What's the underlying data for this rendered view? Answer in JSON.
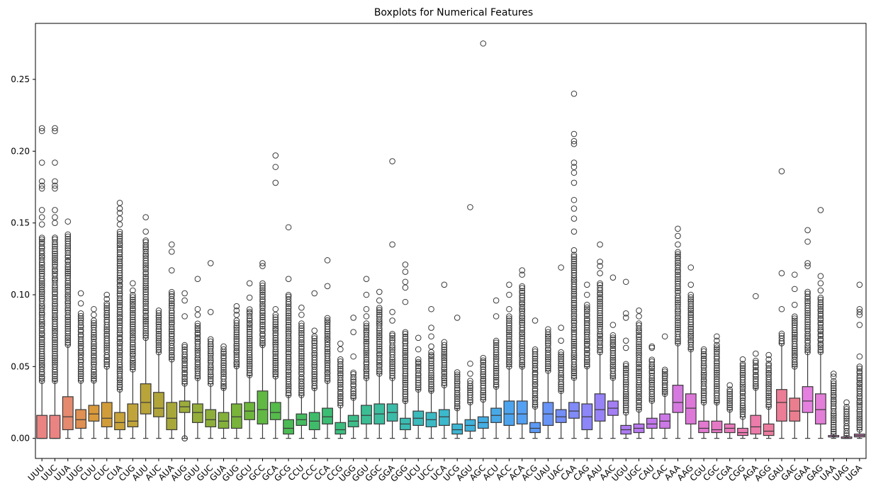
{
  "chart_data": {
    "type": "box",
    "title": "Boxplots for Numerical Features",
    "xlabel": "",
    "ylabel": "",
    "ylim": [
      -0.014,
      0.289
    ],
    "yticks": [
      0.0,
      0.05,
      0.1,
      0.15,
      0.2,
      0.25
    ],
    "ytick_labels": [
      "0.00",
      "0.05",
      "0.10",
      "0.15",
      "0.20",
      "0.25"
    ],
    "categories": [
      "UUU",
      "UUC",
      "UUA",
      "UUG",
      "CUU",
      "CUC",
      "CUA",
      "CUG",
      "AUU",
      "AUC",
      "AUA",
      "AUG",
      "GUU",
      "GUC",
      "GUA",
      "GUG",
      "GCU",
      "GCC",
      "GCA",
      "GCG",
      "CCU",
      "CCC",
      "CCA",
      "CCG",
      "UGG",
      "GGU",
      "GGC",
      "GGA",
      "GGG",
      "UCU",
      "UCC",
      "UCA",
      "UCG",
      "AGU",
      "AGC",
      "ACU",
      "ACC",
      "ACA",
      "ACG",
      "UAU",
      "UAC",
      "CAA",
      "CAG",
      "AAU",
      "AAC",
      "UGU",
      "UGC",
      "CAU",
      "CAC",
      "AAA",
      "AAG",
      "CGU",
      "CGC",
      "CGA",
      "CGG",
      "AGA",
      "AGG",
      "GAU",
      "GAC",
      "GAA",
      "GAG",
      "UAA",
      "UAG",
      "UGA"
    ],
    "colors": [
      "#ea8482",
      "#ea8482",
      "#e58a6e",
      "#e09052",
      "#d99a3c",
      "#d19d3a",
      "#c8a23a",
      "#c0a43a",
      "#b8a439",
      "#b1a53a",
      "#a8a83a",
      "#9ead3a",
      "#95ae3a",
      "#8daf3a",
      "#83b13a",
      "#79b33a",
      "#6db63c",
      "#61b943",
      "#55bb4b",
      "#4bbb54",
      "#45bc60",
      "#3fbc6a",
      "#3cbd74",
      "#3cbd7e",
      "#3cbd8a",
      "#3cbd94",
      "#3bbd9e",
      "#3bbca8",
      "#3bbcb2",
      "#3bbbbc",
      "#3bbac5",
      "#3cb9cc",
      "#3eb6d4",
      "#40b2dc",
      "#44aee3",
      "#48a9e9",
      "#4da4ee",
      "#54a0f2",
      "#5c9af5",
      "#6894f7",
      "#748ef8",
      "#808af8",
      "#8c86f8",
      "#9882f7",
      "#a47ef5",
      "#ae7bf2",
      "#b879ef",
      "#c278ec",
      "#cc78e6",
      "#d578df",
      "#dd78d8",
      "#e278cf",
      "#e679c6",
      "#e97abd",
      "#eb7bb3",
      "#ec7caa",
      "#ec7ca0",
      "#ec7d96",
      "#eb7e8e",
      "#e57fe0",
      "#e37fd8",
      "#e080d0",
      "#de80c8",
      "#db80c0"
    ],
    "stats": [
      {
        "q1": 0.0,
        "median": 0.0,
        "q3": 0.016,
        "whislo": 0.0,
        "whishi": 0.04,
        "fliers_low": 0.04,
        "fliers_high": 0.14,
        "extra": [
          0.216,
          0.214,
          0.192,
          0.179,
          0.176,
          0.174,
          0.159,
          0.154,
          0.149
        ]
      },
      {
        "q1": 0.0,
        "median": 0.0,
        "q3": 0.016,
        "whislo": 0.0,
        "whishi": 0.04,
        "fliers_low": 0.04,
        "fliers_high": 0.14,
        "extra": [
          0.216,
          0.214,
          0.192,
          0.179,
          0.176,
          0.174,
          0.159,
          0.154,
          0.15
        ]
      },
      {
        "q1": 0.006,
        "median": 0.015,
        "q3": 0.029,
        "whislo": 0.0,
        "whishi": 0.065,
        "fliers_low": 0.065,
        "fliers_high": 0.142,
        "extra": [
          0.151
        ]
      },
      {
        "q1": 0.007,
        "median": 0.013,
        "q3": 0.02,
        "whislo": 0.0,
        "whishi": 0.04,
        "fliers_low": 0.04,
        "fliers_high": 0.087,
        "extra": [
          0.094,
          0.101
        ]
      },
      {
        "q1": 0.012,
        "median": 0.017,
        "q3": 0.023,
        "whislo": 0.0,
        "whishi": 0.04,
        "fliers_low": 0.04,
        "fliers_high": 0.082,
        "extra": [
          0.086,
          0.09
        ]
      },
      {
        "q1": 0.008,
        "median": 0.014,
        "q3": 0.025,
        "whislo": 0.0,
        "whishi": 0.05,
        "fliers_low": 0.05,
        "fliers_high": 0.094,
        "extra": [
          0.097,
          0.1
        ]
      },
      {
        "q1": 0.006,
        "median": 0.011,
        "q3": 0.018,
        "whislo": 0.0,
        "whishi": 0.034,
        "fliers_low": 0.034,
        "fliers_high": 0.144,
        "extra": [
          0.149,
          0.153,
          0.157,
          0.16,
          0.164
        ]
      },
      {
        "q1": 0.008,
        "median": 0.012,
        "q3": 0.024,
        "whislo": 0.0,
        "whishi": 0.048,
        "fliers_low": 0.048,
        "fliers_high": 0.1,
        "extra": [
          0.103,
          0.108
        ]
      },
      {
        "q1": 0.017,
        "median": 0.025,
        "q3": 0.038,
        "whislo": 0.0,
        "whishi": 0.07,
        "fliers_low": 0.07,
        "fliers_high": 0.138,
        "extra": [
          0.144,
          0.154
        ]
      },
      {
        "q1": 0.015,
        "median": 0.021,
        "q3": 0.032,
        "whislo": 0.0,
        "whishi": 0.06,
        "fliers_low": 0.06,
        "fliers_high": 0.089,
        "extra": []
      },
      {
        "q1": 0.006,
        "median": 0.014,
        "q3": 0.025,
        "whislo": 0.0,
        "whishi": 0.055,
        "fliers_low": 0.055,
        "fliers_high": 0.102,
        "extra": [
          0.117,
          0.13,
          0.135
        ]
      },
      {
        "q1": 0.018,
        "median": 0.022,
        "q3": 0.026,
        "whislo": 0.0,
        "whishi": 0.038,
        "fliers_low": 0.038,
        "fliers_high": 0.065,
        "extra": [
          0.085,
          0.096,
          0.101,
          0.0,
          0.0
        ]
      },
      {
        "q1": 0.011,
        "median": 0.018,
        "q3": 0.024,
        "whislo": 0.0,
        "whishi": 0.042,
        "fliers_low": 0.042,
        "fliers_high": 0.08,
        "extra": [
          0.086,
          0.09,
          0.111
        ]
      },
      {
        "q1": 0.008,
        "median": 0.013,
        "q3": 0.02,
        "whislo": 0.0,
        "whishi": 0.038,
        "fliers_low": 0.038,
        "fliers_high": 0.069,
        "extra": [
          0.088,
          0.122
        ]
      },
      {
        "q1": 0.007,
        "median": 0.012,
        "q3": 0.018,
        "whislo": 0.0,
        "whishi": 0.035,
        "fliers_low": 0.035,
        "fliers_high": 0.062,
        "extra": [
          0.064
        ]
      },
      {
        "q1": 0.007,
        "median": 0.015,
        "q3": 0.024,
        "whislo": 0.0,
        "whishi": 0.05,
        "fliers_low": 0.05,
        "fliers_high": 0.082,
        "extra": [
          0.086,
          0.089,
          0.092
        ]
      },
      {
        "q1": 0.013,
        "median": 0.019,
        "q3": 0.025,
        "whislo": 0.0,
        "whishi": 0.044,
        "fliers_low": 0.044,
        "fliers_high": 0.09,
        "extra": [
          0.098,
          0.108
        ]
      },
      {
        "q1": 0.01,
        "median": 0.02,
        "q3": 0.033,
        "whislo": 0.0,
        "whishi": 0.065,
        "fliers_low": 0.065,
        "fliers_high": 0.108,
        "extra": [
          0.12,
          0.122
        ]
      },
      {
        "q1": 0.013,
        "median": 0.018,
        "q3": 0.025,
        "whislo": 0.0,
        "whishi": 0.043,
        "fliers_low": 0.043,
        "fliers_high": 0.086,
        "extra": [
          0.09,
          0.178,
          0.189,
          0.197
        ]
      },
      {
        "q1": 0.003,
        "median": 0.007,
        "q3": 0.013,
        "whislo": 0.0,
        "whishi": 0.03,
        "fliers_low": 0.03,
        "fliers_high": 0.1,
        "extra": [
          0.111,
          0.147
        ]
      },
      {
        "q1": 0.009,
        "median": 0.013,
        "q3": 0.017,
        "whislo": 0.0,
        "whishi": 0.03,
        "fliers_low": 0.03,
        "fliers_high": 0.08,
        "extra": [
          0.086,
          0.091
        ]
      },
      {
        "q1": 0.006,
        "median": 0.012,
        "q3": 0.018,
        "whislo": 0.0,
        "whishi": 0.035,
        "fliers_low": 0.035,
        "fliers_high": 0.071,
        "extra": [
          0.075,
          0.101
        ]
      },
      {
        "q1": 0.01,
        "median": 0.015,
        "q3": 0.021,
        "whislo": 0.0,
        "whishi": 0.04,
        "fliers_low": 0.04,
        "fliers_high": 0.084,
        "extra": [
          0.106,
          0.124
        ]
      },
      {
        "q1": 0.003,
        "median": 0.006,
        "q3": 0.011,
        "whislo": 0.0,
        "whishi": 0.023,
        "fliers_low": 0.023,
        "fliers_high": 0.055,
        "extra": [
          0.062,
          0.066
        ]
      },
      {
        "q1": 0.008,
        "median": 0.012,
        "q3": 0.016,
        "whislo": 0.0,
        "whishi": 0.028,
        "fliers_low": 0.028,
        "fliers_high": 0.046,
        "extra": [
          0.057,
          0.074,
          0.084
        ]
      },
      {
        "q1": 0.01,
        "median": 0.016,
        "q3": 0.023,
        "whislo": 0.0,
        "whishi": 0.042,
        "fliers_low": 0.042,
        "fliers_high": 0.08,
        "extra": [
          0.085,
          0.09,
          0.1,
          0.111
        ]
      },
      {
        "q1": 0.01,
        "median": 0.017,
        "q3": 0.024,
        "whislo": 0.0,
        "whishi": 0.045,
        "fliers_low": 0.045,
        "fliers_high": 0.091,
        "extra": [
          0.096,
          0.102
        ]
      },
      {
        "q1": 0.012,
        "median": 0.018,
        "q3": 0.024,
        "whislo": 0.0,
        "whishi": 0.042,
        "fliers_low": 0.042,
        "fliers_high": 0.073,
        "extra": [
          0.082,
          0.088,
          0.135,
          0.193
        ]
      },
      {
        "q1": 0.006,
        "median": 0.01,
        "q3": 0.014,
        "whislo": 0.0,
        "whishi": 0.026,
        "fliers_low": 0.026,
        "fliers_high": 0.074,
        "extra": [
          0.095,
          0.105,
          0.109,
          0.116,
          0.121
        ]
      },
      {
        "q1": 0.009,
        "median": 0.014,
        "q3": 0.019,
        "whislo": 0.0,
        "whishi": 0.034,
        "fliers_low": 0.034,
        "fliers_high": 0.055,
        "extra": [
          0.062,
          0.07
        ]
      },
      {
        "q1": 0.008,
        "median": 0.013,
        "q3": 0.018,
        "whislo": 0.0,
        "whishi": 0.033,
        "fliers_low": 0.033,
        "fliers_high": 0.06,
        "extra": [
          0.064,
          0.071,
          0.077,
          0.09
        ]
      },
      {
        "q1": 0.009,
        "median": 0.015,
        "q3": 0.02,
        "whislo": 0.0,
        "whishi": 0.037,
        "fliers_low": 0.037,
        "fliers_high": 0.065,
        "extra": [
          0.067,
          0.107
        ]
      },
      {
        "q1": 0.003,
        "median": 0.006,
        "q3": 0.01,
        "whislo": 0.0,
        "whishi": 0.021,
        "fliers_low": 0.021,
        "fliers_high": 0.046,
        "extra": [
          0.084
        ]
      },
      {
        "q1": 0.005,
        "median": 0.009,
        "q3": 0.013,
        "whislo": 0.0,
        "whishi": 0.025,
        "fliers_low": 0.025,
        "fliers_high": 0.04,
        "extra": [
          0.045,
          0.052,
          0.161
        ]
      },
      {
        "q1": 0.007,
        "median": 0.011,
        "q3": 0.015,
        "whislo": 0.0,
        "whishi": 0.027,
        "fliers_low": 0.027,
        "fliers_high": 0.056,
        "extra": [
          0.275
        ]
      },
      {
        "q1": 0.011,
        "median": 0.016,
        "q3": 0.021,
        "whislo": 0.0,
        "whishi": 0.036,
        "fliers_low": 0.036,
        "fliers_high": 0.068,
        "extra": [
          0.085,
          0.096
        ]
      },
      {
        "q1": 0.009,
        "median": 0.017,
        "q3": 0.026,
        "whislo": 0.0,
        "whishi": 0.05,
        "fliers_low": 0.05,
        "fliers_high": 0.085,
        "extra": [
          0.09,
          0.1,
          0.107
        ]
      },
      {
        "q1": 0.01,
        "median": 0.017,
        "q3": 0.026,
        "whislo": 0.0,
        "whishi": 0.05,
        "fliers_low": 0.05,
        "fliers_high": 0.106,
        "extra": [
          0.114,
          0.117
        ]
      },
      {
        "q1": 0.004,
        "median": 0.007,
        "q3": 0.011,
        "whislo": 0.0,
        "whishi": 0.022,
        "fliers_low": 0.022,
        "fliers_high": 0.062,
        "extra": [
          0.082
        ]
      },
      {
        "q1": 0.009,
        "median": 0.017,
        "q3": 0.025,
        "whislo": 0.0,
        "whishi": 0.047,
        "fliers_low": 0.047,
        "fliers_high": 0.074,
        "extra": [
          0.076
        ]
      },
      {
        "q1": 0.011,
        "median": 0.015,
        "q3": 0.02,
        "whislo": 0.0,
        "whishi": 0.033,
        "fliers_low": 0.033,
        "fliers_high": 0.06,
        "extra": [
          0.068,
          0.077,
          0.119
        ]
      },
      {
        "q1": 0.014,
        "median": 0.019,
        "q3": 0.025,
        "whislo": 0.0,
        "whishi": 0.042,
        "fliers_low": 0.042,
        "fliers_high": 0.128,
        "extra": [
          0.131,
          0.144,
          0.153,
          0.16,
          0.166,
          0.178,
          0.185,
          0.189,
          0.192,
          0.205,
          0.207,
          0.212,
          0.24
        ]
      },
      {
        "q1": 0.006,
        "median": 0.015,
        "q3": 0.024,
        "whislo": 0.0,
        "whishi": 0.05,
        "fliers_low": 0.05,
        "fliers_high": 0.093,
        "extra": [
          0.1,
          0.107
        ]
      },
      {
        "q1": 0.012,
        "median": 0.02,
        "q3": 0.031,
        "whislo": 0.0,
        "whishi": 0.06,
        "fliers_low": 0.06,
        "fliers_high": 0.108,
        "extra": [
          0.115,
          0.12,
          0.123,
          0.135
        ]
      },
      {
        "q1": 0.016,
        "median": 0.021,
        "q3": 0.026,
        "whislo": 0.0,
        "whishi": 0.042,
        "fliers_low": 0.042,
        "fliers_high": 0.072,
        "extra": [
          0.079,
          0.112
        ]
      },
      {
        "q1": 0.003,
        "median": 0.006,
        "q3": 0.009,
        "whislo": 0.0,
        "whishi": 0.018,
        "fliers_low": 0.018,
        "fliers_high": 0.052,
        "extra": [
          0.063,
          0.068,
          0.084,
          0.087,
          0.109
        ]
      },
      {
        "q1": 0.004,
        "median": 0.007,
        "q3": 0.01,
        "whislo": 0.0,
        "whishi": 0.02,
        "fliers_low": 0.02,
        "fliers_high": 0.08,
        "extra": [
          0.085,
          0.089
        ]
      },
      {
        "q1": 0.007,
        "median": 0.01,
        "q3": 0.014,
        "whislo": 0.0,
        "whishi": 0.026,
        "fliers_low": 0.026,
        "fliers_high": 0.055,
        "extra": [
          0.063,
          0.064
        ]
      },
      {
        "q1": 0.007,
        "median": 0.012,
        "q3": 0.017,
        "whislo": 0.0,
        "whishi": 0.031,
        "fliers_low": 0.031,
        "fliers_high": 0.048,
        "extra": [
          0.071
        ]
      },
      {
        "q1": 0.018,
        "median": 0.025,
        "q3": 0.037,
        "whislo": 0.0,
        "whishi": 0.066,
        "fliers_low": 0.066,
        "fliers_high": 0.13,
        "extra": [
          0.135,
          0.141,
          0.146
        ]
      },
      {
        "q1": 0.01,
        "median": 0.021,
        "q3": 0.031,
        "whislo": 0.0,
        "whishi": 0.062,
        "fliers_low": 0.062,
        "fliers_high": 0.1,
        "extra": [
          0.107,
          0.119
        ]
      },
      {
        "q1": 0.004,
        "median": 0.007,
        "q3": 0.012,
        "whislo": 0.0,
        "whishi": 0.025,
        "fliers_low": 0.025,
        "fliers_high": 0.062,
        "extra": []
      },
      {
        "q1": 0.004,
        "median": 0.006,
        "q3": 0.012,
        "whislo": 0.0,
        "whishi": 0.025,
        "fliers_low": 0.025,
        "fliers_high": 0.065,
        "extra": [
          0.068,
          0.071
        ]
      },
      {
        "q1": 0.004,
        "median": 0.007,
        "q3": 0.01,
        "whislo": 0.0,
        "whishi": 0.02,
        "fliers_low": 0.02,
        "fliers_high": 0.034,
        "extra": [
          0.037
        ]
      },
      {
        "q1": 0.002,
        "median": 0.004,
        "q3": 0.007,
        "whislo": 0.0,
        "whishi": 0.015,
        "fliers_low": 0.015,
        "fliers_high": 0.052,
        "extra": [
          0.055
        ]
      },
      {
        "q1": 0.003,
        "median": 0.008,
        "q3": 0.016,
        "whislo": 0.0,
        "whishi": 0.035,
        "fliers_low": 0.035,
        "fliers_high": 0.054,
        "extra": [
          0.059,
          0.099
        ]
      },
      {
        "q1": 0.002,
        "median": 0.005,
        "q3": 0.01,
        "whislo": 0.0,
        "whishi": 0.022,
        "fliers_low": 0.022,
        "fliers_high": 0.052,
        "extra": [
          0.055,
          0.058
        ]
      },
      {
        "q1": 0.012,
        "median": 0.025,
        "q3": 0.034,
        "whislo": 0.0,
        "whishi": 0.066,
        "fliers_low": 0.066,
        "fliers_high": 0.073,
        "extra": [
          0.09,
          0.115,
          0.186
        ]
      },
      {
        "q1": 0.012,
        "median": 0.019,
        "q3": 0.028,
        "whislo": 0.0,
        "whishi": 0.05,
        "fliers_low": 0.05,
        "fliers_high": 0.085,
        "extra": [
          0.093,
          0.104,
          0.114
        ]
      },
      {
        "q1": 0.018,
        "median": 0.026,
        "q3": 0.036,
        "whislo": 0.0,
        "whishi": 0.06,
        "fliers_low": 0.06,
        "fliers_high": 0.102,
        "extra": [
          0.12,
          0.122,
          0.137,
          0.145
        ]
      },
      {
        "q1": 0.01,
        "median": 0.02,
        "q3": 0.031,
        "whislo": 0.0,
        "whishi": 0.06,
        "fliers_low": 0.06,
        "fliers_high": 0.098,
        "extra": [
          0.103,
          0.108,
          0.113,
          0.159
        ]
      },
      {
        "q1": 0.001,
        "median": 0.001,
        "q3": 0.002,
        "whislo": 0.0,
        "whishi": 0.003,
        "fliers_low": 0.003,
        "fliers_high": 0.04,
        "extra": [
          0.043,
          0.045
        ]
      },
      {
        "q1": 0.0,
        "median": 0.0,
        "q3": 0.001,
        "whislo": 0.0,
        "whishi": 0.002,
        "fliers_low": 0.002,
        "fliers_high": 0.022,
        "extra": [
          0.025
        ]
      },
      {
        "q1": 0.001,
        "median": 0.002,
        "q3": 0.003,
        "whislo": 0.0,
        "whishi": 0.006,
        "fliers_low": 0.006,
        "fliers_high": 0.05,
        "extra": [
          0.057,
          0.079,
          0.086,
          0.088,
          0.09,
          0.107
        ]
      }
    ],
    "grid": false,
    "legend": "none"
  }
}
